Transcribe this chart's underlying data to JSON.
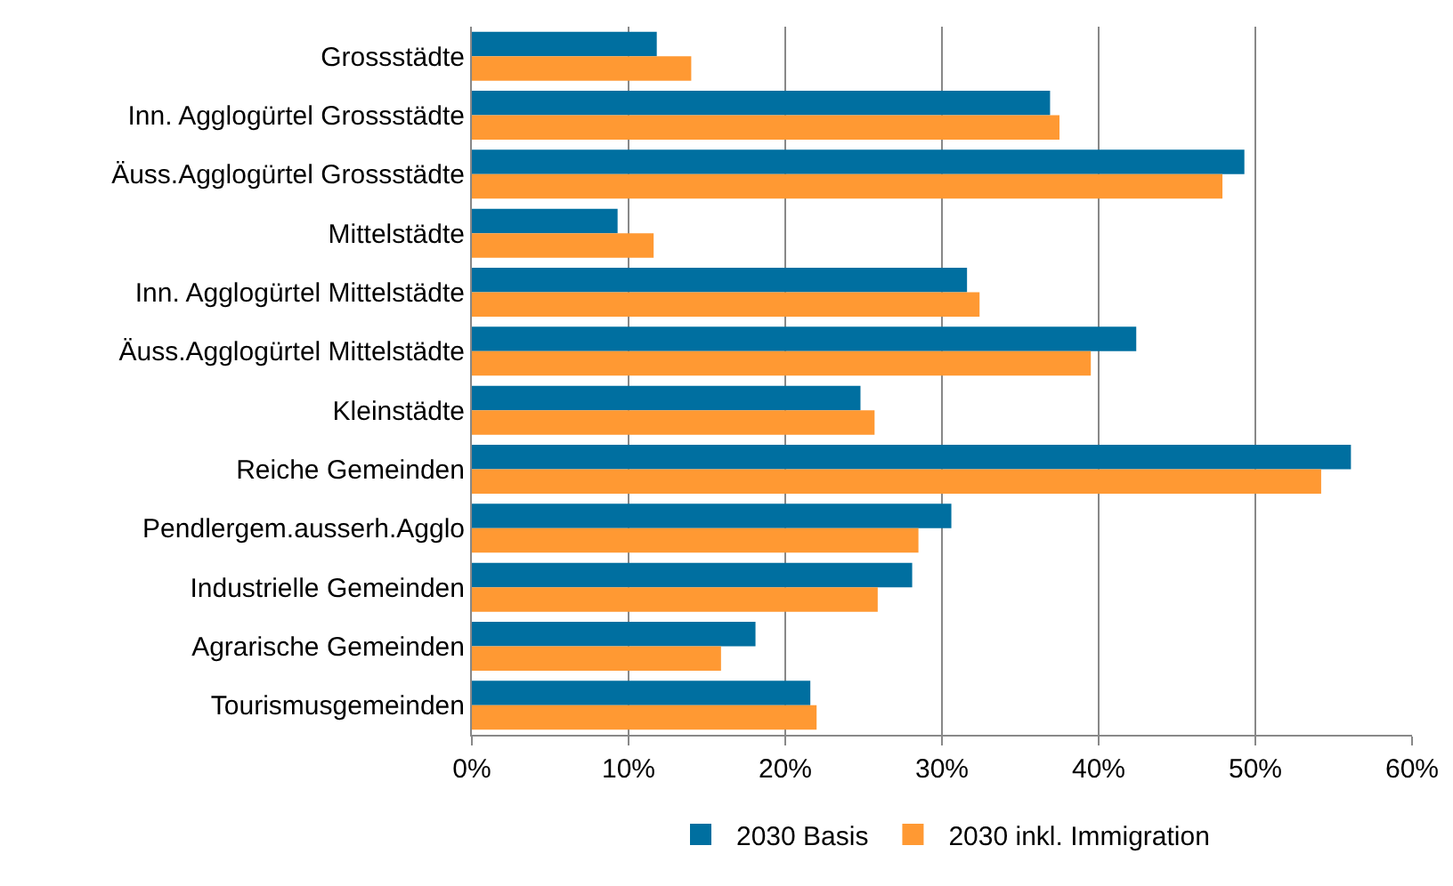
{
  "chart_data": {
    "type": "bar",
    "orientation": "horizontal",
    "categories": [
      "Grossstädte",
      "Inn. Agglogürtel Grossstädte",
      "Äuss.Agglogürtel Grossstädte",
      "Mittelstädte",
      "Inn. Agglogürtel Mittelstädte",
      "Äuss.Agglogürtel Mittelstädte",
      "Kleinstädte",
      "Reiche Gemeinden",
      "Pendlergem.ausserh.Agglo",
      "Industrielle Gemeinden",
      "Agrarische Gemeinden",
      "Tourismusgemeinden"
    ],
    "series": [
      {
        "name": "2030 Basis",
        "color": "#006fa0",
        "values": [
          11.8,
          36.9,
          49.3,
          9.3,
          31.6,
          42.4,
          24.8,
          56.1,
          30.6,
          28.1,
          18.1,
          21.6
        ]
      },
      {
        "name": "2030 inkl. Immigration",
        "color": "#ff9933",
        "values": [
          14.0,
          37.5,
          47.9,
          11.6,
          32.4,
          39.5,
          25.7,
          54.2,
          28.5,
          25.9,
          15.9,
          22.0
        ]
      }
    ],
    "xlim": [
      0,
      60
    ],
    "xticks": [
      {
        "value": 0,
        "label": "0%"
      },
      {
        "value": 10,
        "label": "10%"
      },
      {
        "value": 20,
        "label": "20%"
      },
      {
        "value": 30,
        "label": "30%"
      },
      {
        "value": 40,
        "label": "40%"
      },
      {
        "value": 50,
        "label": "50%"
      },
      {
        "value": 60,
        "label": "60%"
      }
    ],
    "grid": "x",
    "legend": "bottom"
  }
}
